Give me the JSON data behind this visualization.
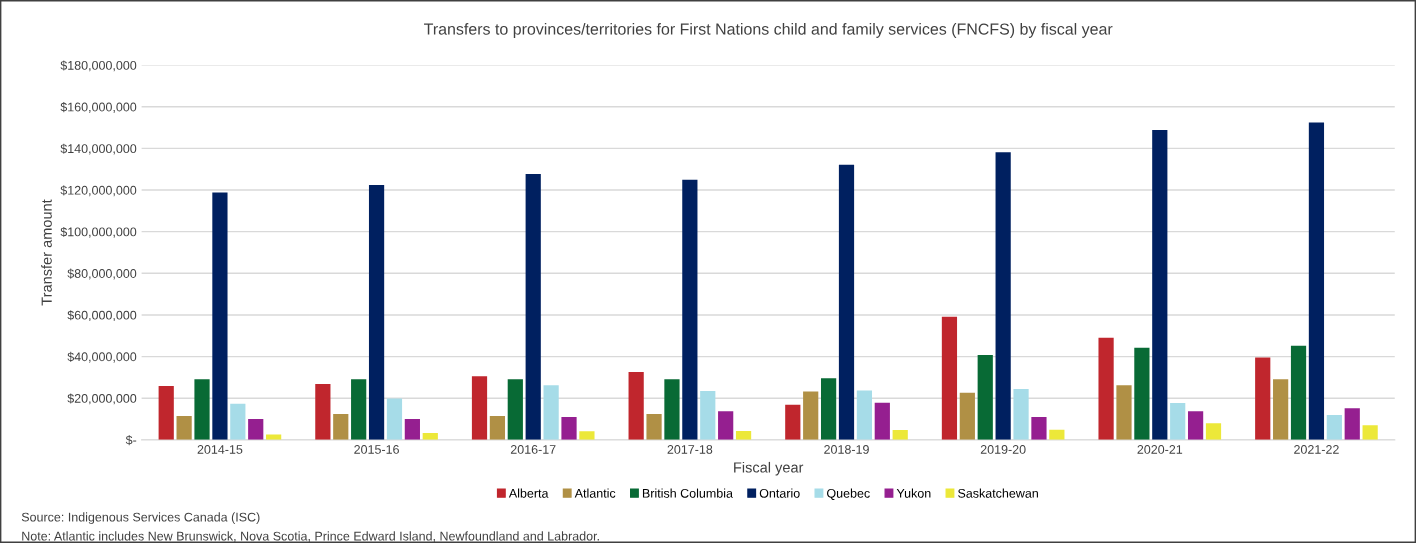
{
  "chart_data": {
    "type": "bar",
    "title": "Transfers to provinces/territories for First Nations child and family services (FNCFS) by fiscal year",
    "xlabel": "Fiscal year",
    "ylabel": "Transfer amount",
    "categories": [
      "2014-15",
      "2015-16",
      "2016-17",
      "2017-18",
      "2018-19",
      "2019-20",
      "2020-21",
      "2021-22"
    ],
    "series": [
      {
        "name": "Alberta",
        "color": "#c0262d",
        "values": [
          25900000,
          26800000,
          30600000,
          32600000,
          16900000,
          59100000,
          49100000,
          39600000
        ]
      },
      {
        "name": "Atlantic",
        "color": "#b09045",
        "values": [
          11500000,
          12400000,
          11500000,
          12400000,
          23200000,
          22600000,
          26200000,
          29100000
        ]
      },
      {
        "name": "British Columbia",
        "color": "#086a35",
        "values": [
          29100000,
          29100000,
          29100000,
          29100000,
          29600000,
          40800000,
          44200000,
          45200000
        ]
      },
      {
        "name": "Ontario",
        "color": "#002060",
        "values": [
          118800000,
          122400000,
          127700000,
          124900000,
          132200000,
          138100000,
          148900000,
          152500000
        ]
      },
      {
        "name": "Quebec",
        "color": "#a6dce8",
        "values": [
          17300000,
          19800000,
          26200000,
          23400000,
          23700000,
          24400000,
          17700000,
          11900000
        ]
      },
      {
        "name": "Yukon",
        "color": "#951f90",
        "values": [
          10000000,
          10000000,
          11000000,
          13700000,
          17800000,
          11000000,
          13700000,
          15200000
        ]
      },
      {
        "name": "Saskatchewan",
        "color": "#ece839",
        "values": [
          2600000,
          3300000,
          4100000,
          4300000,
          4700000,
          4900000,
          8000000,
          7000000
        ]
      }
    ],
    "ylim": [
      0,
      180000000
    ],
    "yticks": [
      {
        "value": 0,
        "label": "$-"
      },
      {
        "value": 20000000,
        "label": "$20,000,000"
      },
      {
        "value": 40000000,
        "label": "$40,000,000"
      },
      {
        "value": 60000000,
        "label": "$60,000,000"
      },
      {
        "value": 80000000,
        "label": "$80,000,000"
      },
      {
        "value": 100000000,
        "label": "$100,000,000"
      },
      {
        "value": 120000000,
        "label": "$120,000,000"
      },
      {
        "value": 140000000,
        "label": "$140,000,000"
      },
      {
        "value": 160000000,
        "label": "$160,000,000"
      },
      {
        "value": 180000000,
        "label": "$180,000,000"
      }
    ],
    "grid": "y",
    "legend": "bottom",
    "annotations": [
      "Source: Indigenous Services Canada (ISC)",
      "Note: Atlantic includes New Brunswick, Nova Scotia, Prince Edward Island, Newfoundland and Labrador."
    ]
  }
}
